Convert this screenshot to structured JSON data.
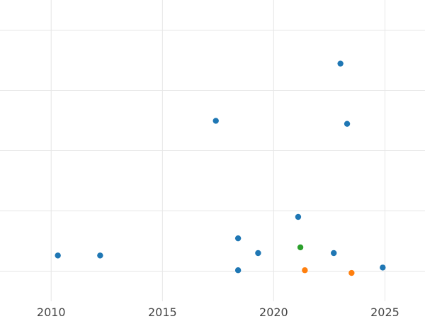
{
  "chart_data": {
    "type": "scatter",
    "title": "",
    "xlabel": "",
    "ylabel": "",
    "xlim": [
      2007.7,
      2026.8
    ],
    "ylim": [
      0,
      100
    ],
    "x_ticks": [
      2010,
      2015,
      2020,
      2025
    ],
    "y_grid": [
      10,
      30,
      50,
      70,
      90
    ],
    "grid": true,
    "legend": "none",
    "series": [
      {
        "color": "#1f77b4",
        "points": [
          {
            "x": 2010.3,
            "y": 15.2
          },
          {
            "x": 2012.2,
            "y": 15.2
          },
          {
            "x": 2017.4,
            "y": 59.9
          },
          {
            "x": 2018.4,
            "y": 20.9
          },
          {
            "x": 2018.4,
            "y": 10.3
          },
          {
            "x": 2019.3,
            "y": 16.0
          },
          {
            "x": 2021.1,
            "y": 28.0
          },
          {
            "x": 2022.7,
            "y": 16.0
          },
          {
            "x": 2023.0,
            "y": 78.9
          },
          {
            "x": 2023.3,
            "y": 58.9
          },
          {
            "x": 2024.9,
            "y": 11.2
          }
        ]
      },
      {
        "color": "#2ca02c",
        "points": [
          {
            "x": 2021.2,
            "y": 17.9
          }
        ]
      },
      {
        "color": "#ff7f0e",
        "points": [
          {
            "x": 2021.4,
            "y": 10.3
          },
          {
            "x": 2023.5,
            "y": 9.4
          }
        ]
      }
    ]
  }
}
